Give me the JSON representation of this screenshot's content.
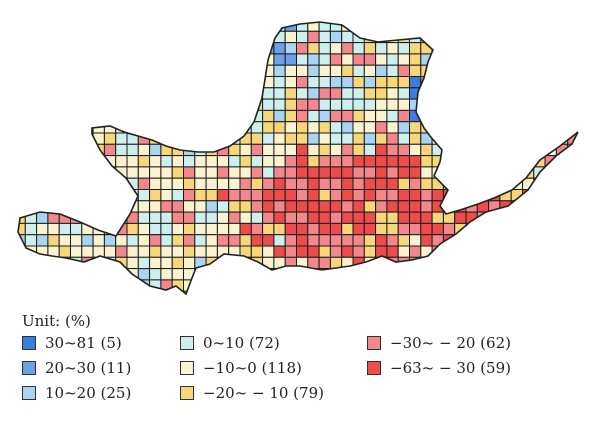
{
  "legend": {
    "unit_label": "Unit: (%)",
    "items": [
      {
        "label": "30~81 (5)",
        "color": "#3b7ce0"
      },
      {
        "label": "20~30 (11)",
        "color": "#6aa2e8"
      },
      {
        "label": "10~20 (25)",
        "color": "#a9d4f2"
      },
      {
        "label": "0~10 (72)",
        "color": "#cdf0ee"
      },
      {
        "label": "−10~0 (118)",
        "color": "#fbf3cf"
      },
      {
        "label": "−20~ − 10 (79)",
        "color": "#f7d77a"
      },
      {
        "label": "−30~ − 20 (62)",
        "color": "#f2888c"
      },
      {
        "label": "−63~ − 30 (59)",
        "color": "#ee4b4b"
      }
    ]
  }
}
